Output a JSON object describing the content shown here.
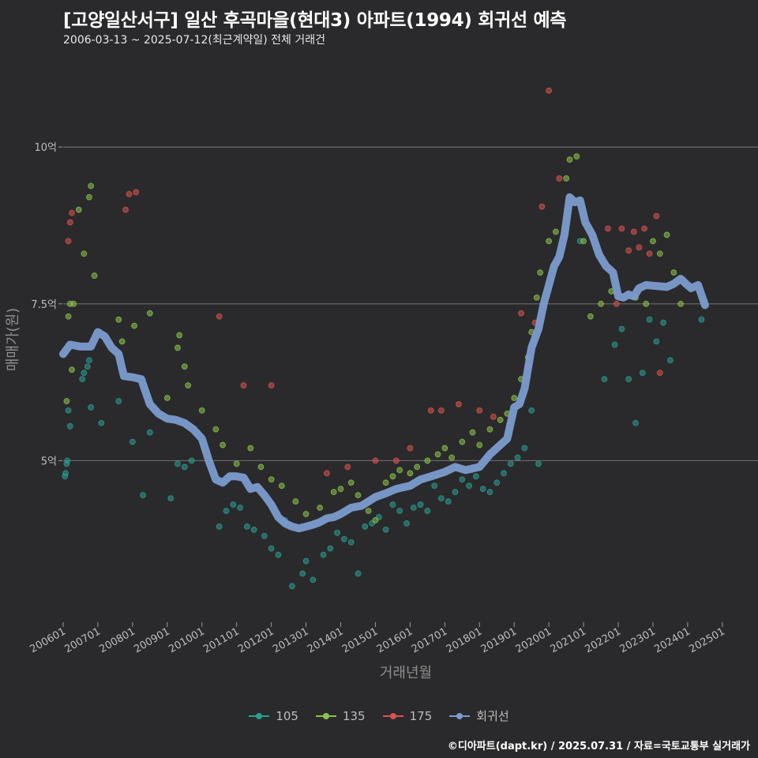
{
  "title": "[고양일산서구] 일산 후곡마을(현대3) 아파트(1994) 회귀선 예측",
  "subtitle": "2006-03-13 ~ 2025-07-12(최근계약일) 전체 거래건",
  "footer": "©디아파트(dapt.kr) / 2025.07.31 / 자료=국토교통부 실거래가",
  "colors": {
    "background": "#2a2a2c",
    "grid": "#6a6a6a",
    "s105": "#2a9d8f",
    "s135": "#8bc34a",
    "s175": "#d9534f",
    "regression": "#7b9ccf"
  },
  "chart_data": {
    "type": "scatter",
    "xlabel": "거래년월",
    "ylabel": "매매가(원)",
    "x_ticks": [
      "200601",
      "200701",
      "200801",
      "200901",
      "201001",
      "201101",
      "201201",
      "201301",
      "201401",
      "201501",
      "201601",
      "201701",
      "201801",
      "201901",
      "202001",
      "202101",
      "202201",
      "202301",
      "202401",
      "202501"
    ],
    "y_ticks": [
      {
        "value": 5.0,
        "label": "5억"
      },
      {
        "value": 7.5,
        "label": "7.5억"
      },
      {
        "value": 10.0,
        "label": "10억"
      }
    ],
    "y_unit": "억",
    "ylim": [
      2.4,
      11.4
    ],
    "xlim": [
      2006.0,
      2025.8
    ],
    "legend": [
      {
        "name": "105",
        "color": "#2a9d8f"
      },
      {
        "name": "135",
        "color": "#8bc34a"
      },
      {
        "name": "175",
        "color": "#d9534f"
      },
      {
        "name": "회귀선",
        "color": "#7b9ccf"
      }
    ],
    "legend_position": "bottom",
    "series": [
      {
        "name": "회귀선",
        "type": "line",
        "points": [
          [
            2006.0,
            6.7
          ],
          [
            2006.2,
            6.85
          ],
          [
            2006.5,
            6.82
          ],
          [
            2006.8,
            6.82
          ],
          [
            2007.0,
            7.05
          ],
          [
            2007.2,
            6.98
          ],
          [
            2007.4,
            6.8
          ],
          [
            2007.6,
            6.7
          ],
          [
            2007.75,
            6.35
          ],
          [
            2008.0,
            6.33
          ],
          [
            2008.25,
            6.3
          ],
          [
            2008.5,
            5.9
          ],
          [
            2008.75,
            5.75
          ],
          [
            2009.0,
            5.67
          ],
          [
            2009.25,
            5.65
          ],
          [
            2009.5,
            5.6
          ],
          [
            2009.75,
            5.5
          ],
          [
            2010.0,
            5.35
          ],
          [
            2010.2,
            5.0
          ],
          [
            2010.4,
            4.7
          ],
          [
            2010.6,
            4.65
          ],
          [
            2010.8,
            4.75
          ],
          [
            2011.0,
            4.75
          ],
          [
            2011.2,
            4.73
          ],
          [
            2011.4,
            4.55
          ],
          [
            2011.6,
            4.58
          ],
          [
            2011.8,
            4.45
          ],
          [
            2012.0,
            4.3
          ],
          [
            2012.2,
            4.1
          ],
          [
            2012.4,
            4.0
          ],
          [
            2012.6,
            3.95
          ],
          [
            2012.8,
            3.92
          ],
          [
            2013.0,
            3.95
          ],
          [
            2013.2,
            3.98
          ],
          [
            2013.4,
            4.02
          ],
          [
            2013.6,
            4.08
          ],
          [
            2013.8,
            4.1
          ],
          [
            2014.0,
            4.15
          ],
          [
            2014.3,
            4.25
          ],
          [
            2014.6,
            4.28
          ],
          [
            2015.0,
            4.42
          ],
          [
            2015.3,
            4.48
          ],
          [
            2015.6,
            4.55
          ],
          [
            2016.0,
            4.6
          ],
          [
            2016.3,
            4.7
          ],
          [
            2016.6,
            4.75
          ],
          [
            2017.0,
            4.82
          ],
          [
            2017.3,
            4.9
          ],
          [
            2017.6,
            4.85
          ],
          [
            2018.0,
            4.9
          ],
          [
            2018.3,
            5.1
          ],
          [
            2018.6,
            5.25
          ],
          [
            2018.8,
            5.35
          ],
          [
            2019.0,
            5.85
          ],
          [
            2019.15,
            5.9
          ],
          [
            2019.3,
            6.15
          ],
          [
            2019.5,
            6.8
          ],
          [
            2019.7,
            7.1
          ],
          [
            2019.85,
            7.5
          ],
          [
            2020.0,
            7.8
          ],
          [
            2020.15,
            8.1
          ],
          [
            2020.3,
            8.25
          ],
          [
            2020.45,
            8.6
          ],
          [
            2020.6,
            9.2
          ],
          [
            2020.75,
            9.12
          ],
          [
            2020.9,
            9.15
          ],
          [
            2021.05,
            8.8
          ],
          [
            2021.25,
            8.6
          ],
          [
            2021.45,
            8.28
          ],
          [
            2021.65,
            8.1
          ],
          [
            2021.85,
            8.0
          ],
          [
            2022.0,
            7.62
          ],
          [
            2022.15,
            7.6
          ],
          [
            2022.3,
            7.65
          ],
          [
            2022.45,
            7.62
          ],
          [
            2022.6,
            7.75
          ],
          [
            2022.8,
            7.8
          ],
          [
            2023.0,
            7.79
          ],
          [
            2023.2,
            7.78
          ],
          [
            2023.4,
            7.77
          ],
          [
            2023.6,
            7.82
          ],
          [
            2023.8,
            7.9
          ],
          [
            2023.95,
            7.82
          ],
          [
            2024.1,
            7.75
          ],
          [
            2024.3,
            7.8
          ],
          [
            2024.5,
            7.48
          ]
        ]
      },
      {
        "name": "105",
        "type": "scatter",
        "points": [
          [
            2006.05,
            4.75
          ],
          [
            2006.07,
            4.8
          ],
          [
            2006.1,
            4.95
          ],
          [
            2006.12,
            5.0
          ],
          [
            2006.15,
            5.8
          ],
          [
            2006.2,
            5.55
          ],
          [
            2006.55,
            6.3
          ],
          [
            2006.6,
            6.4
          ],
          [
            2006.7,
            6.5
          ],
          [
            2006.75,
            6.6
          ],
          [
            2006.8,
            5.85
          ],
          [
            2007.1,
            5.6
          ],
          [
            2007.6,
            5.95
          ],
          [
            2008.0,
            5.3
          ],
          [
            2008.3,
            4.45
          ],
          [
            2008.5,
            5.45
          ],
          [
            2009.1,
            4.4
          ],
          [
            2009.3,
            4.95
          ],
          [
            2009.5,
            4.9
          ],
          [
            2009.7,
            5.0
          ],
          [
            2010.5,
            3.95
          ],
          [
            2010.7,
            4.2
          ],
          [
            2010.9,
            4.3
          ],
          [
            2011.1,
            4.25
          ],
          [
            2011.3,
            3.95
          ],
          [
            2011.5,
            3.9
          ],
          [
            2011.8,
            3.8
          ],
          [
            2012.0,
            3.6
          ],
          [
            2012.2,
            3.5
          ],
          [
            2012.4,
            4.05
          ],
          [
            2012.6,
            3.0
          ],
          [
            2012.9,
            3.2
          ],
          [
            2013.0,
            3.4
          ],
          [
            2013.2,
            3.1
          ],
          [
            2013.5,
            3.5
          ],
          [
            2013.7,
            3.6
          ],
          [
            2013.9,
            3.85
          ],
          [
            2014.1,
            3.75
          ],
          [
            2014.3,
            3.7
          ],
          [
            2014.5,
            3.2
          ],
          [
            2014.7,
            3.95
          ],
          [
            2014.9,
            4.0
          ],
          [
            2015.1,
            4.1
          ],
          [
            2015.3,
            3.9
          ],
          [
            2015.5,
            4.3
          ],
          [
            2015.7,
            4.2
          ],
          [
            2015.9,
            4.0
          ],
          [
            2016.1,
            4.25
          ],
          [
            2016.3,
            4.3
          ],
          [
            2016.5,
            4.2
          ],
          [
            2016.7,
            4.6
          ],
          [
            2016.9,
            4.4
          ],
          [
            2017.1,
            4.35
          ],
          [
            2017.3,
            4.5
          ],
          [
            2017.5,
            4.7
          ],
          [
            2017.7,
            4.6
          ],
          [
            2017.9,
            4.75
          ],
          [
            2018.1,
            4.55
          ],
          [
            2018.3,
            4.5
          ],
          [
            2018.5,
            4.65
          ],
          [
            2018.7,
            4.8
          ],
          [
            2018.9,
            4.95
          ],
          [
            2019.1,
            5.05
          ],
          [
            2019.3,
            5.2
          ],
          [
            2019.5,
            5.8
          ],
          [
            2019.7,
            4.95
          ],
          [
            2020.9,
            8.5
          ],
          [
            2021.6,
            6.3
          ],
          [
            2021.9,
            6.85
          ],
          [
            2022.1,
            7.1
          ],
          [
            2022.3,
            6.3
          ],
          [
            2022.5,
            5.6
          ],
          [
            2022.7,
            6.4
          ],
          [
            2022.9,
            7.25
          ],
          [
            2023.1,
            6.9
          ],
          [
            2023.3,
            7.2
          ],
          [
            2023.5,
            6.6
          ],
          [
            2024.4,
            7.25
          ]
        ]
      },
      {
        "name": "135",
        "type": "scatter",
        "points": [
          [
            2006.1,
            5.95
          ],
          [
            2006.15,
            7.3
          ],
          [
            2006.2,
            7.5
          ],
          [
            2006.25,
            6.45
          ],
          [
            2006.3,
            7.5
          ],
          [
            2006.45,
            9.0
          ],
          [
            2006.6,
            8.3
          ],
          [
            2006.75,
            9.2
          ],
          [
            2006.8,
            9.38
          ],
          [
            2006.9,
            7.95
          ],
          [
            2007.6,
            7.25
          ],
          [
            2007.7,
            6.9
          ],
          [
            2008.05,
            7.15
          ],
          [
            2008.5,
            7.35
          ],
          [
            2009.0,
            6.0
          ],
          [
            2009.3,
            6.8
          ],
          [
            2009.35,
            7.0
          ],
          [
            2009.5,
            6.5
          ],
          [
            2009.6,
            6.2
          ],
          [
            2010.0,
            5.8
          ],
          [
            2010.4,
            5.5
          ],
          [
            2010.6,
            5.25
          ],
          [
            2011.0,
            4.95
          ],
          [
            2011.4,
            5.2
          ],
          [
            2011.7,
            4.9
          ],
          [
            2012.0,
            4.7
          ],
          [
            2012.3,
            4.6
          ],
          [
            2012.7,
            4.35
          ],
          [
            2013.0,
            4.15
          ],
          [
            2013.4,
            4.25
          ],
          [
            2013.8,
            4.5
          ],
          [
            2014.0,
            4.55
          ],
          [
            2014.3,
            4.65
          ],
          [
            2014.5,
            4.45
          ],
          [
            2014.8,
            4.2
          ],
          [
            2015.0,
            4.05
          ],
          [
            2015.3,
            4.65
          ],
          [
            2015.5,
            4.75
          ],
          [
            2015.7,
            4.85
          ],
          [
            2016.0,
            4.8
          ],
          [
            2016.2,
            4.9
          ],
          [
            2016.5,
            5.0
          ],
          [
            2016.8,
            5.1
          ],
          [
            2017.0,
            5.2
          ],
          [
            2017.2,
            5.05
          ],
          [
            2017.5,
            5.3
          ],
          [
            2017.8,
            5.45
          ],
          [
            2018.0,
            5.25
          ],
          [
            2018.3,
            5.5
          ],
          [
            2018.6,
            5.65
          ],
          [
            2018.8,
            5.75
          ],
          [
            2019.0,
            6.0
          ],
          [
            2019.2,
            6.3
          ],
          [
            2019.4,
            6.65
          ],
          [
            2019.5,
            7.05
          ],
          [
            2019.65,
            7.6
          ],
          [
            2019.75,
            8.0
          ],
          [
            2020.0,
            8.5
          ],
          [
            2020.2,
            8.65
          ],
          [
            2020.5,
            9.5
          ],
          [
            2020.6,
            9.8
          ],
          [
            2020.8,
            9.85
          ],
          [
            2021.0,
            8.5
          ],
          [
            2021.2,
            7.3
          ],
          [
            2021.5,
            7.5
          ],
          [
            2021.8,
            7.7
          ],
          [
            2022.5,
            7.6
          ],
          [
            2022.8,
            7.5
          ],
          [
            2023.0,
            8.5
          ],
          [
            2023.2,
            8.3
          ],
          [
            2023.4,
            8.6
          ],
          [
            2023.6,
            8.0
          ],
          [
            2023.8,
            7.5
          ]
        ]
      },
      {
        "name": "175",
        "type": "scatter",
        "points": [
          [
            2006.15,
            8.5
          ],
          [
            2006.2,
            8.8
          ],
          [
            2006.25,
            8.95
          ],
          [
            2007.8,
            9.0
          ],
          [
            2007.9,
            9.25
          ],
          [
            2008.1,
            9.28
          ],
          [
            2010.5,
            7.3
          ],
          [
            2011.2,
            6.2
          ],
          [
            2012.0,
            6.2
          ],
          [
            2013.6,
            4.8
          ],
          [
            2014.2,
            4.9
          ],
          [
            2015.0,
            5.0
          ],
          [
            2015.6,
            5.0
          ],
          [
            2016.0,
            5.2
          ],
          [
            2016.6,
            5.8
          ],
          [
            2016.9,
            5.8
          ],
          [
            2017.4,
            5.9
          ],
          [
            2018.0,
            5.8
          ],
          [
            2018.4,
            5.7
          ],
          [
            2019.2,
            7.35
          ],
          [
            2019.4,
            6.5
          ],
          [
            2019.6,
            7.2
          ],
          [
            2019.8,
            9.05
          ],
          [
            2020.0,
            10.9
          ],
          [
            2020.3,
            9.5
          ],
          [
            2021.7,
            8.7
          ],
          [
            2021.95,
            7.5
          ],
          [
            2022.1,
            8.7
          ],
          [
            2022.3,
            8.35
          ],
          [
            2022.45,
            8.65
          ],
          [
            2022.6,
            8.4
          ],
          [
            2022.75,
            8.7
          ],
          [
            2022.9,
            8.3
          ],
          [
            2023.1,
            8.9
          ],
          [
            2023.2,
            6.4
          ]
        ]
      }
    ]
  }
}
